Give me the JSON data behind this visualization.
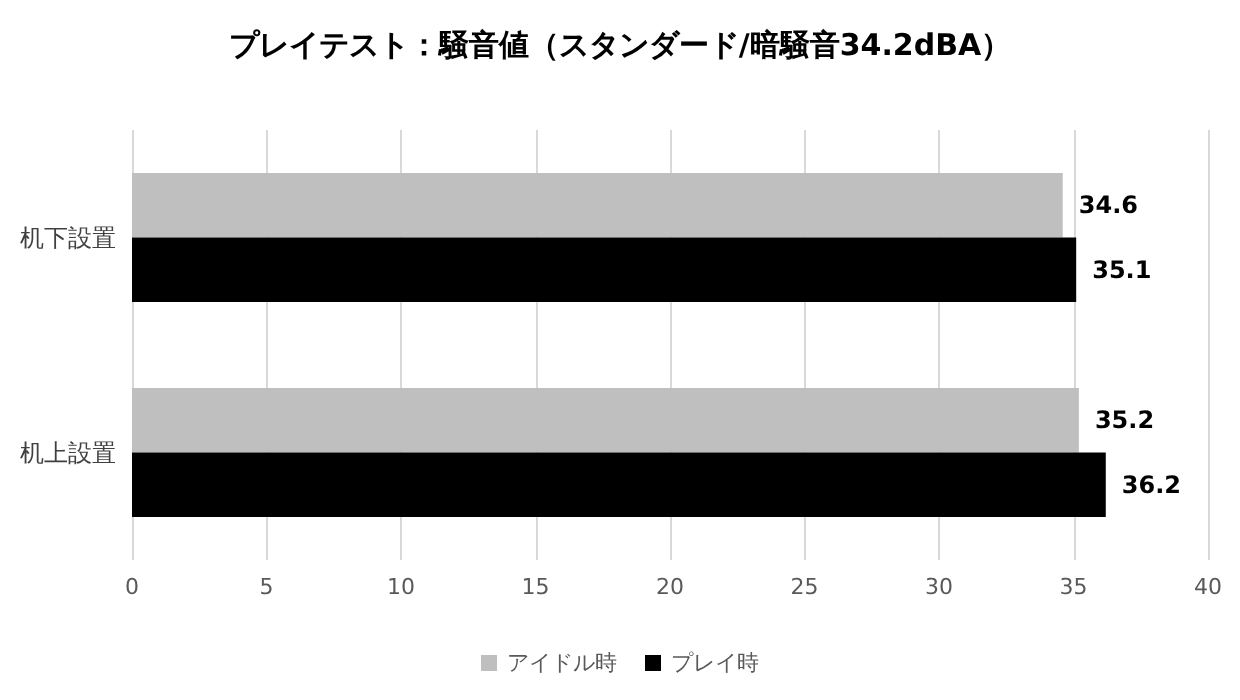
{
  "chart_data": {
    "type": "bar",
    "orientation": "horizontal",
    "title": "プレイテスト：騒音値（スタンダード/暗騒音34.2dBA）",
    "categories": [
      "机下設置",
      "机上設置"
    ],
    "series": [
      {
        "name": "アイドル時",
        "color": "#bfbfbf",
        "values": [
          34.6,
          35.2
        ]
      },
      {
        "name": "プレイ時",
        "color": "#000000",
        "values": [
          35.1,
          36.2
        ]
      }
    ],
    "xlim": [
      0,
      40
    ],
    "xticks": [
      0,
      5,
      10,
      15,
      20,
      25,
      30,
      35,
      40
    ],
    "grid": "x",
    "legend": "bottom",
    "data_labels": true
  }
}
